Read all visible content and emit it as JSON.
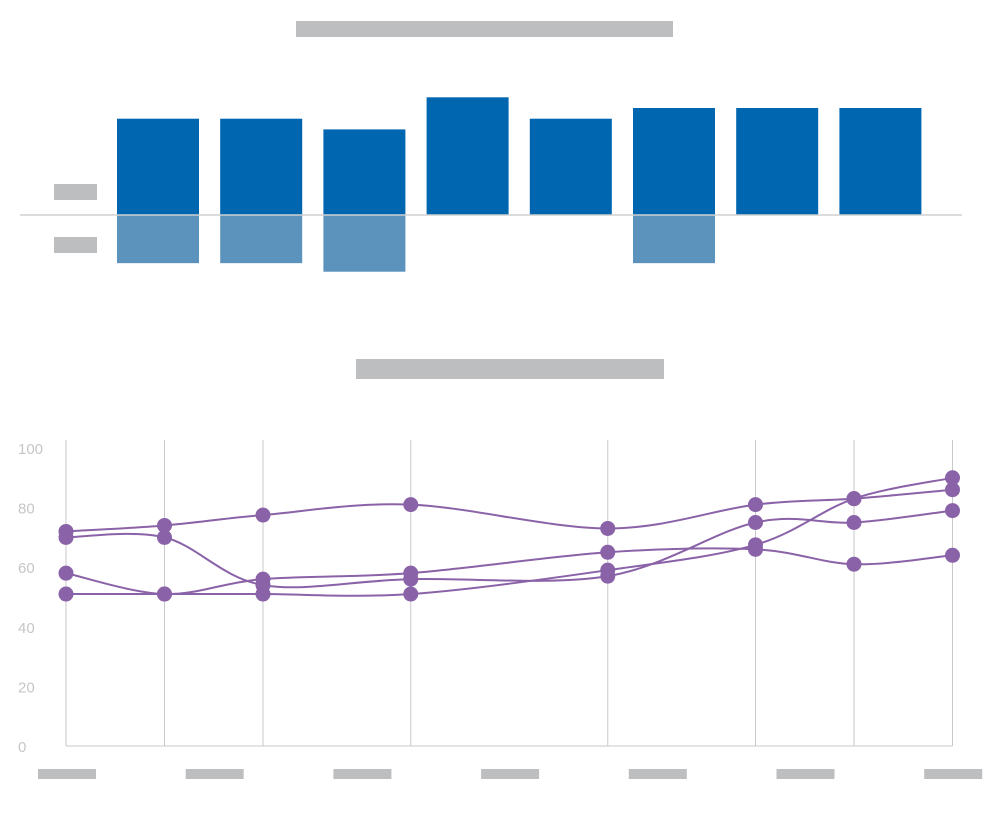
{
  "colors": {
    "positive_bar": "#0066b0",
    "negative_bar": "#5b93bd",
    "line": "#8a62a8",
    "placeholder": "#bcbec0",
    "axis": "#c8c8c8",
    "tick_text": "#c4c6c8"
  },
  "chart_data": [
    {
      "type": "bar",
      "title": "",
      "categories": [
        "",
        "",
        "",
        "",
        "",
        "",
        "",
        ""
      ],
      "series": [
        {
          "values": [
            90,
            90,
            80,
            110,
            90,
            100,
            100,
            100
          ]
        },
        {
          "values": [
            -45,
            -45,
            -53,
            0,
            0,
            -45,
            0,
            0
          ]
        }
      ],
      "ylim": [
        -100,
        120
      ],
      "grid": false
    },
    {
      "type": "line",
      "title": "",
      "x": [
        0,
        1,
        2,
        3.5,
        5.5,
        7,
        8,
        9
      ],
      "xlabels": [
        "",
        "",
        "",
        "",
        "",
        "",
        ""
      ],
      "ylim": [
        0,
        100
      ],
      "yticks": [
        "100",
        "80",
        "60",
        "40",
        "20",
        "0"
      ],
      "grid": true,
      "series": [
        {
          "values": [
            72,
            74,
            77.5,
            81,
            73,
            81,
            83,
            86
          ]
        },
        {
          "values": [
            70,
            70,
            54,
            56,
            57,
            75,
            75,
            79
          ]
        },
        {
          "values": [
            58,
            51,
            56,
            58,
            65,
            66,
            61,
            64
          ]
        },
        {
          "values": [
            51,
            51,
            51,
            51,
            59,
            67.5,
            83,
            90
          ]
        }
      ]
    }
  ]
}
